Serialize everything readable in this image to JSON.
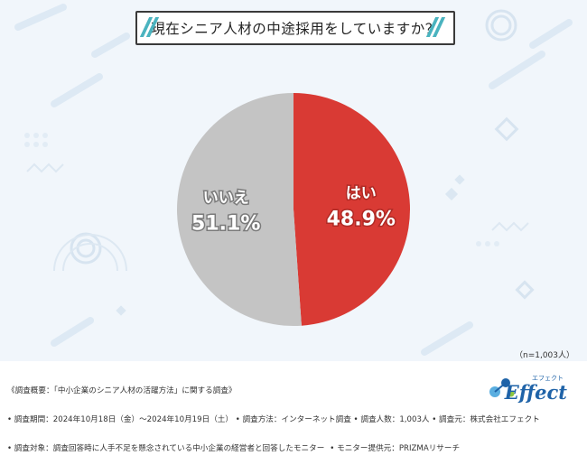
{
  "title": "現在シニア人材の中途採用をしていますか？",
  "sample_size": "（n=1,003人）",
  "chart_data": {
    "type": "pie",
    "slices": [
      {
        "label": "はい",
        "value": 48.9,
        "display": "48.9%",
        "color": "#d93a34"
      },
      {
        "label": "いいえ",
        "value": 51.1,
        "display": "51.1%",
        "color": "#c4c4c4"
      }
    ]
  },
  "footer": {
    "line1": "《調査概要：「中小企業のシニア人材の活躍方法」に関する調査》",
    "line2": "• 調査期間：2024年10月18日（金）〜2024年10月19日（土） • 調査方法：インターネット調査 • 調査人数：1,003人 • 調査元：株式会社エフェクト",
    "line3": "• 調査対象：調査回答時に人手不足を懸念されている中小企業の経営者と回答したモニター",
    "line3_right": "• モニター提供元：PRIZMAリサーチ"
  },
  "logo": {
    "name": "Effect",
    "kana": "エフェクト"
  }
}
